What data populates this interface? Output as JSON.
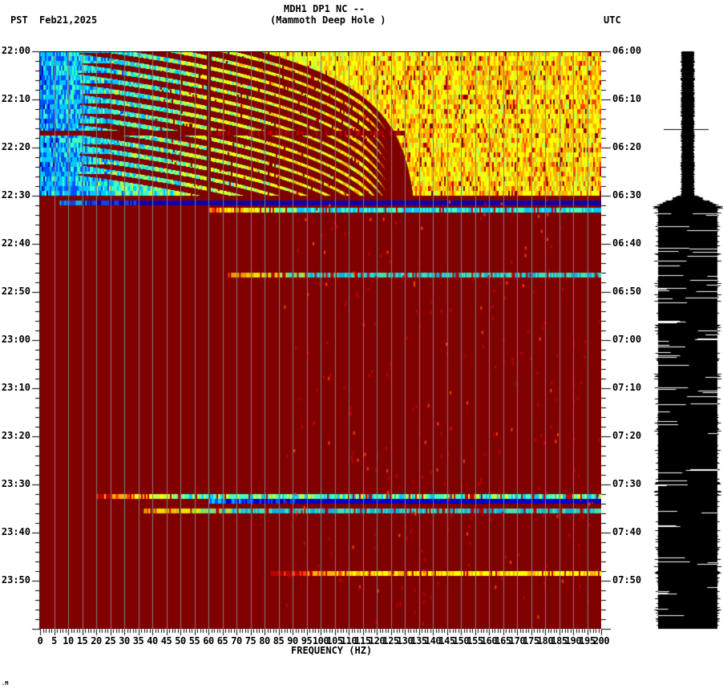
{
  "header": {
    "title_line1": "MDH1 DP1 NC --",
    "title_line2": "(Mammoth Deep Hole )",
    "left_tz": "PST",
    "date": "Feb21,2025",
    "right_tz": "UTC"
  },
  "footer_mark": ".M",
  "colors": {
    "saturated": "#800000",
    "grid": "#808080",
    "colormap": [
      "#0000c0",
      "#0050ff",
      "#00c8ff",
      "#40ffc0",
      "#c0ff40",
      "#ffff00",
      "#ffb000",
      "#ff4000",
      "#c00000",
      "#800000"
    ]
  },
  "chart_data": {
    "type": "heatmap",
    "title": "MDH1 DP1 NC -- (Mammoth Deep Hole )",
    "xlabel": "FREQUENCY (HZ)",
    "ylabel_left": "PST",
    "ylabel_right": "UTC",
    "xlim": [
      0,
      200
    ],
    "x_ticks": [
      "0",
      "5",
      "10",
      "15",
      "20",
      "25",
      "30",
      "35",
      "40",
      "45",
      "50",
      "55",
      "60",
      "65",
      "70",
      "75",
      "80",
      "85",
      "90",
      "95",
      "100",
      "105",
      "110",
      "115",
      "120",
      "125",
      "130",
      "135",
      "140",
      "145",
      "150",
      "155",
      "160",
      "165",
      "170",
      "175",
      "180",
      "185",
      "190",
      "195",
      "200"
    ],
    "y_ticks_left": [
      "22:00",
      "22:10",
      "22:20",
      "22:30",
      "22:40",
      "22:50",
      "23:00",
      "23:10",
      "23:20",
      "23:30",
      "23:40",
      "23:50"
    ],
    "y_ticks_right": [
      "06:00",
      "06:10",
      "06:20",
      "06:30",
      "06:40",
      "06:50",
      "07:00",
      "07:10",
      "07:20",
      "07:30",
      "07:40",
      "07:50"
    ],
    "time_span_minutes": 120,
    "grid": "vertical lines every 5 Hz",
    "regions": [
      {
        "from_min": 0,
        "to_min": 30,
        "description": "normal noise: blue/cyan below ~55 Hz, yellow/green/orange above; curved dark-red chirp lines (gliding tones) rising from ~25 Hz to ~120 Hz; strong line at 60 Hz; broadband saturated stripe at ~16.5 min (22:16)"
      },
      {
        "from_min": 30,
        "to_min": 120,
        "description": "saturated (dark red) across all frequencies"
      }
    ],
    "bands": [
      {
        "time_min": 31.5,
        "f_start": 7,
        "f_end": 200,
        "level": "blue",
        "note": "below-saturation band 22:31-22:32"
      },
      {
        "time_min": 33,
        "f_start": 60,
        "f_end": 200,
        "level": "yellow-cyan"
      },
      {
        "time_min": 46.5,
        "f_start": 67,
        "f_end": 200,
        "level": "yellow-cyan",
        "note": "22:46-22:47"
      },
      {
        "time_min": 92.5,
        "f_start": 20,
        "f_end": 200,
        "level": "orange-cyan",
        "note": "23:32"
      },
      {
        "time_min": 93.5,
        "f_start": 60,
        "f_end": 200,
        "level": "blue"
      },
      {
        "time_min": 95.5,
        "f_start": 37,
        "f_end": 200,
        "level": "yellow-cyan",
        "note": "23:35"
      },
      {
        "time_min": 108.5,
        "f_start": 80,
        "f_end": 200,
        "level": "orange",
        "note": "23:48"
      }
    ],
    "seismogram": {
      "description": "black amplitude trace; small amplitude 22:00-22:30 with spike at 22:16, full-width clipped amplitude 22:30-24:00"
    }
  }
}
